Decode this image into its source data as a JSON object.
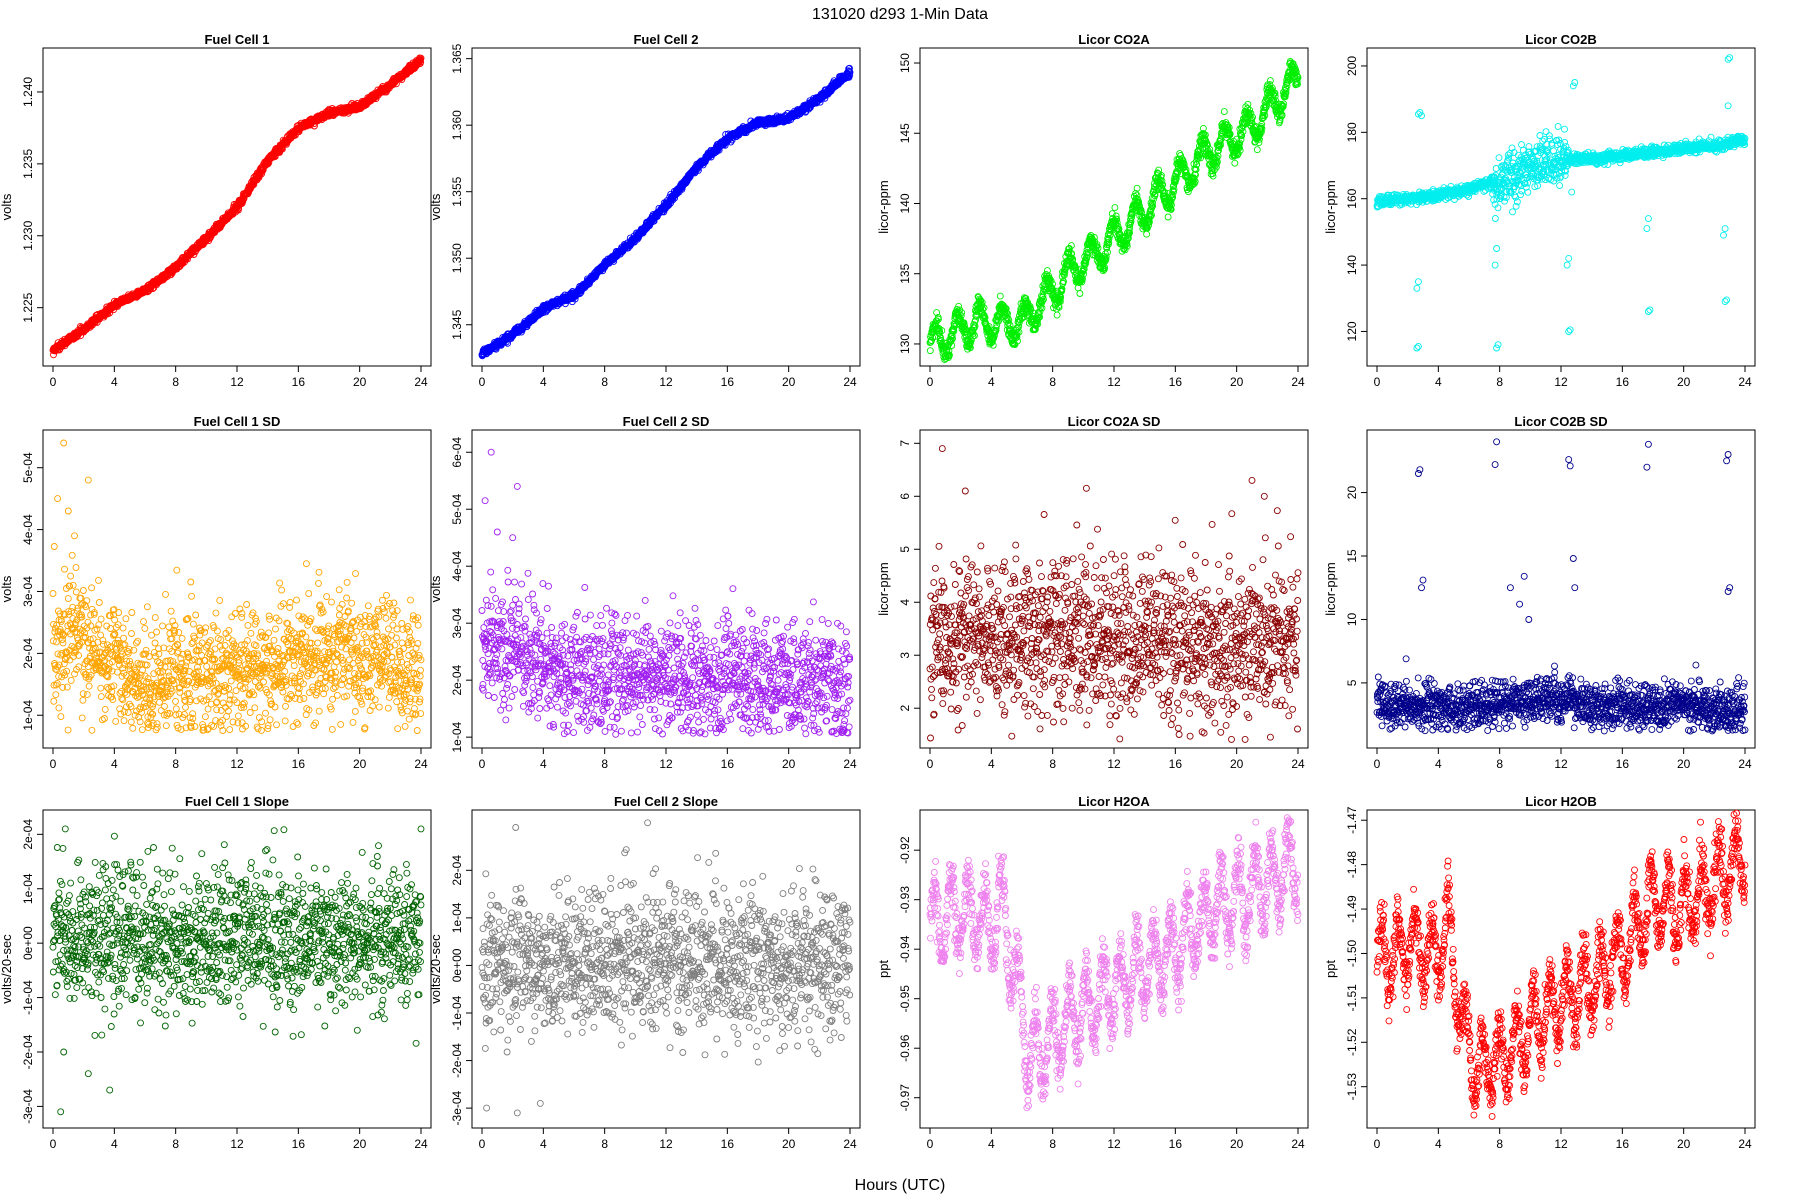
{
  "figure": {
    "title": "131020    d293    1-Min Data",
    "xlabel": "Hours (UTC)"
  },
  "chart_data": [
    {
      "type": "scatter",
      "title": "Fuel Cell 1",
      "ylabel": "volts",
      "xlim": [
        0,
        24
      ],
      "ylim": [
        1.2215,
        1.2425
      ],
      "xticks": [
        0,
        4,
        8,
        12,
        16,
        20,
        24
      ],
      "yticks": [
        1.225,
        1.23,
        1.235,
        1.24
      ],
      "ytick_labels": [
        "1.225",
        "1.230",
        "1.235",
        "1.240"
      ],
      "color": "#ff0000",
      "marker": "open-circle",
      "grid": false,
      "gen": {
        "kind": "curve",
        "n": 1440,
        "noise": 0.00012,
        "xy": [
          [
            0,
            1.222
          ],
          [
            2,
            1.2235
          ],
          [
            4,
            1.2252
          ],
          [
            6,
            1.2262
          ],
          [
            8,
            1.2278
          ],
          [
            10,
            1.2298
          ],
          [
            12,
            1.232
          ],
          [
            14,
            1.2352
          ],
          [
            16,
            1.2375
          ],
          [
            18,
            1.2385
          ],
          [
            20,
            1.239
          ],
          [
            22,
            1.2405
          ],
          [
            24,
            1.2422
          ]
        ]
      }
    },
    {
      "type": "scatter",
      "title": "Fuel Cell 2",
      "ylabel": "volts",
      "xlim": [
        0,
        24
      ],
      "ylim": [
        1.3425,
        1.3652
      ],
      "xticks": [
        0,
        4,
        8,
        12,
        16,
        20,
        24
      ],
      "yticks": [
        1.345,
        1.35,
        1.355,
        1.36,
        1.365
      ],
      "ytick_labels": [
        "1.345",
        "1.350",
        "1.355",
        "1.360",
        "1.365"
      ],
      "color": "#0000ff",
      "marker": "open-circle",
      "grid": false,
      "gen": {
        "kind": "curve",
        "n": 1440,
        "noise": 0.00013,
        "xy": [
          [
            0,
            1.3428
          ],
          [
            2,
            1.3442
          ],
          [
            4,
            1.3462
          ],
          [
            6,
            1.3472
          ],
          [
            8,
            1.3495
          ],
          [
            10,
            1.3515
          ],
          [
            12,
            1.354
          ],
          [
            14,
            1.3568
          ],
          [
            16,
            1.359
          ],
          [
            18,
            1.3602
          ],
          [
            20,
            1.3605
          ],
          [
            22,
            1.362
          ],
          [
            24,
            1.364
          ]
        ]
      }
    },
    {
      "type": "scatter",
      "title": "Licor CO2A",
      "ylabel": "licor-ppm",
      "xlim": [
        0,
        24
      ],
      "ylim": [
        129,
        150.5
      ],
      "xticks": [
        0,
        4,
        8,
        12,
        16,
        20,
        24
      ],
      "yticks": [
        130,
        135,
        140,
        145,
        150
      ],
      "ytick_labels": [
        "130",
        "135",
        "140",
        "145",
        "150"
      ],
      "color": "#00ee00",
      "marker": "open-circle",
      "grid": false,
      "gen": {
        "kind": "wave",
        "n": 1440,
        "noise": 0.35,
        "amp": 1.2,
        "period": 1.45,
        "xy": [
          [
            0,
            130
          ],
          [
            3,
            131.5
          ],
          [
            6,
            131.5
          ],
          [
            9,
            135
          ],
          [
            12,
            137.5
          ],
          [
            15,
            140.5
          ],
          [
            18,
            143.5
          ],
          [
            21,
            145.5
          ],
          [
            24,
            149
          ]
        ]
      }
    },
    {
      "type": "scatter",
      "title": "Licor CO2B",
      "ylabel": "licor-ppm",
      "xlim": [
        0,
        24
      ],
      "ylim": [
        112,
        203
      ],
      "xticks": [
        0,
        4,
        8,
        12,
        16,
        20,
        24
      ],
      "yticks": [
        120,
        140,
        160,
        180,
        200
      ],
      "ytick_labels": [
        "120",
        "140",
        "160",
        "180",
        "200"
      ],
      "color": "#00eeee",
      "marker": "open-circle",
      "grid": false,
      "gen": {
        "kind": "co2b",
        "n": 1440,
        "noise": 0.8,
        "xy": [
          [
            0,
            159
          ],
          [
            4,
            161
          ],
          [
            6,
            163
          ],
          [
            8,
            166
          ],
          [
            10,
            170
          ],
          [
            12,
            172
          ],
          [
            14,
            172
          ],
          [
            18,
            174
          ],
          [
            22,
            176
          ],
          [
            24,
            178
          ]
        ]
      },
      "outliers": [
        [
          2.7,
          185.5
        ],
        [
          2.8,
          186
        ],
        [
          2.9,
          185
        ],
        [
          2.6,
          133
        ],
        [
          2.7,
          135
        ],
        [
          2.6,
          115
        ],
        [
          2.7,
          115.5
        ],
        [
          7.8,
          115
        ],
        [
          7.9,
          116
        ],
        [
          7.7,
          140
        ],
        [
          7.8,
          145
        ],
        [
          12.5,
          120
        ],
        [
          12.6,
          120.5
        ],
        [
          12.4,
          140
        ],
        [
          12.5,
          142
        ],
        [
          12.8,
          194
        ],
        [
          12.9,
          195
        ],
        [
          12.7,
          162
        ],
        [
          17.7,
          126
        ],
        [
          17.8,
          126.5
        ],
        [
          17.6,
          151
        ],
        [
          17.7,
          154
        ],
        [
          22.7,
          129
        ],
        [
          22.8,
          129.5
        ],
        [
          22.6,
          149
        ],
        [
          22.7,
          151
        ],
        [
          22.9,
          202
        ],
        [
          23.0,
          202.5
        ],
        [
          22.9,
          188
        ]
      ]
    },
    {
      "type": "scatter",
      "title": "Fuel Cell 1 SD",
      "ylabel": "volts",
      "xlim": [
        0,
        24
      ],
      "ylim": [
        6e-05,
        0.000548
      ],
      "xticks": [
        0,
        4,
        8,
        12,
        16,
        20,
        24
      ],
      "yticks": [
        0.0001,
        0.0002,
        0.0003,
        0.0004,
        0.0005
      ],
      "ytick_labels": [
        "1e-04",
        "2e-04",
        "3e-04",
        "4e-04",
        "5e-04"
      ],
      "color": "#ffa500",
      "marker": "open-circle",
      "grid": false,
      "gen": {
        "kind": "band",
        "n": 1440,
        "min": 7.5e-05,
        "mean": 0.00018,
        "sd": 5e-05,
        "xy": [
          [
            0,
            0.00022
          ],
          [
            2,
            0.00022
          ],
          [
            5,
            0.00016
          ],
          [
            12,
            0.00017
          ],
          [
            19,
            0.0002
          ],
          [
            24,
            0.00017
          ]
        ]
      },
      "outliers": [
        [
          0.7,
          0.00054
        ],
        [
          0.3,
          0.00045
        ],
        [
          1.0,
          0.00043
        ],
        [
          2.3,
          0.00048
        ],
        [
          1.4,
          0.00039
        ]
      ]
    },
    {
      "type": "scatter",
      "title": "Fuel Cell 2 SD",
      "ylabel": "volts",
      "xlim": [
        0,
        24
      ],
      "ylim": [
        9.5e-05,
        0.000625
      ],
      "xticks": [
        0,
        4,
        8,
        12,
        16,
        20,
        24
      ],
      "yticks": [
        0.0001,
        0.0002,
        0.0003,
        0.0004,
        0.0005,
        0.0006
      ],
      "ytick_labels": [
        "1e-04",
        "2e-04",
        "3e-04",
        "4e-04",
        "5e-04",
        "6e-04"
      ],
      "color": "#a020f0",
      "marker": "open-circle",
      "grid": false,
      "gen": {
        "kind": "band",
        "n": 1440,
        "min": 0.000105,
        "mean": 0.000205,
        "sd": 5e-05,
        "xy": [
          [
            0,
            0.00026
          ],
          [
            3,
            0.00024
          ],
          [
            6,
            0.0002
          ],
          [
            12,
            0.00021
          ],
          [
            18,
            0.0002
          ],
          [
            24,
            0.00019
          ]
        ]
      },
      "outliers": [
        [
          0.6,
          0.0006
        ],
        [
          0.2,
          0.000515
        ],
        [
          2.3,
          0.00054
        ],
        [
          1.0,
          0.00046
        ],
        [
          2.0,
          0.00045
        ]
      ]
    },
    {
      "type": "scatter",
      "title": "Licor CO2A SD",
      "ylabel": "licor-ppm",
      "xlim": [
        0,
        24
      ],
      "ylim": [
        1.4,
        7.1
      ],
      "xticks": [
        0,
        4,
        8,
        12,
        16,
        20,
        24
      ],
      "yticks": [
        2,
        3,
        4,
        5,
        6,
        7
      ],
      "ytick_labels": [
        "2",
        "3",
        "4",
        "5",
        "6",
        "7"
      ],
      "color": "#8b0000",
      "marker": "open-circle",
      "grid": false,
      "gen": {
        "kind": "band",
        "n": 1440,
        "min": 1.4,
        "mean": 3.3,
        "sd": 0.75,
        "xy": [
          [
            0,
            3.3
          ],
          [
            24,
            3.2
          ]
        ]
      },
      "outliers": [
        [
          0.8,
          6.9
        ],
        [
          2.3,
          6.1
        ],
        [
          10.2,
          6.15
        ],
        [
          21.0,
          6.3
        ],
        [
          21.8,
          6.0
        ]
      ]
    },
    {
      "type": "scatter",
      "title": "Licor CO2B SD",
      "ylabel": "licor-ppm",
      "xlim": [
        0,
        24
      ],
      "ylim": [
        0.5,
        24.3
      ],
      "xticks": [
        0,
        4,
        8,
        12,
        16,
        20,
        24
      ],
      "yticks": [
        5,
        10,
        15,
        20
      ],
      "ytick_labels": [
        "5",
        "10",
        "15",
        "20"
      ],
      "color": "#00008b",
      "marker": "open-circle",
      "grid": false,
      "gen": {
        "kind": "band",
        "n": 1440,
        "min": 1.2,
        "mean": 3.2,
        "sd": 0.9,
        "xy": [
          [
            0,
            3.1
          ],
          [
            8,
            3.3
          ],
          [
            11,
            3.8
          ],
          [
            14,
            3.2
          ],
          [
            24,
            3.0
          ]
        ]
      },
      "outliers": [
        [
          2.7,
          21.5
        ],
        [
          2.8,
          21.8
        ],
        [
          2.9,
          12.5
        ],
        [
          3.0,
          13.1
        ],
        [
          7.8,
          24
        ],
        [
          7.7,
          22.2
        ],
        [
          8.7,
          12.5
        ],
        [
          9.3,
          11.2
        ],
        [
          9.6,
          13.4
        ],
        [
          9.9,
          10
        ],
        [
          12.5,
          22.6
        ],
        [
          12.6,
          22.1
        ],
        [
          12.8,
          14.8
        ],
        [
          12.9,
          12.5
        ],
        [
          17.7,
          23.8
        ],
        [
          17.6,
          22
        ],
        [
          22.8,
          22.5
        ],
        [
          22.9,
          23
        ],
        [
          22.9,
          12.2
        ],
        [
          23.0,
          12.5
        ],
        [
          1.9,
          6.9
        ],
        [
          20.8,
          6.4
        ]
      ]
    },
    {
      "type": "scatter",
      "title": "Fuel Cell 1 Slope",
      "ylabel": "volts/20-sec",
      "xlim": [
        0,
        24
      ],
      "ylim": [
        -0.000325,
        0.00023
      ],
      "xticks": [
        0,
        4,
        8,
        12,
        16,
        20,
        24
      ],
      "yticks": [
        -0.0003,
        -0.0002,
        -0.0001,
        0,
        0.0001,
        0.0002
      ],
      "ytick_labels": [
        "-3e-04",
        "-2e-04",
        "-1e-04",
        "0e+00",
        "1e-04",
        "2e-04"
      ],
      "color": "#006400",
      "marker": "open-circle",
      "grid": false,
      "gen": {
        "kind": "band",
        "n": 1440,
        "min": -0.00021,
        "max": 0.00021,
        "mean": 1e-05,
        "sd": 6.5e-05,
        "xy": [
          [
            0,
            1e-05
          ],
          [
            24,
            1e-05
          ]
        ]
      },
      "outliers": [
        [
          0.5,
          -0.00031
        ],
        [
          0.7,
          -0.0002
        ],
        [
          2.3,
          -0.00024
        ],
        [
          3.7,
          -0.00027
        ],
        [
          0.8,
          0.00021
        ],
        [
          24.0,
          0.00021
        ]
      ]
    },
    {
      "type": "scatter",
      "title": "Fuel Cell 2 Slope",
      "ylabel": "volts/20-sec",
      "xlim": [
        0,
        24
      ],
      "ylim": [
        -0.000325,
        0.00031
      ],
      "xticks": [
        0,
        4,
        8,
        12,
        16,
        20,
        24
      ],
      "yticks": [
        -0.0003,
        -0.0002,
        -0.0001,
        0,
        0.0001,
        0.0002
      ],
      "ytick_labels": [
        "-3e-04",
        "-2e-04",
        "-1e-04",
        "0e+00",
        "1e-04",
        "2e-04"
      ],
      "color": "#7f7f7f",
      "marker": "open-circle",
      "grid": false,
      "gen": {
        "kind": "band",
        "n": 1440,
        "min": -0.00023,
        "max": 0.00027,
        "mean": 1e-05,
        "sd": 7.5e-05,
        "xy": [
          [
            0,
            1e-05
          ],
          [
            24,
            1e-05
          ]
        ]
      },
      "outliers": [
        [
          0.3,
          -0.0003
        ],
        [
          2.3,
          -0.00031
        ],
        [
          3.8,
          -0.00029
        ],
        [
          2.2,
          0.00029
        ],
        [
          10.8,
          0.0003
        ]
      ]
    },
    {
      "type": "scatter",
      "title": "Licor H2OA",
      "ylabel": "ppt",
      "xlim": [
        0,
        24
      ],
      "ylim": [
        -0.9745,
        -0.9135
      ],
      "xticks": [
        0,
        4,
        8,
        12,
        16,
        20,
        24
      ],
      "yticks": [
        -0.97,
        -0.96,
        -0.95,
        -0.94,
        -0.93,
        -0.92
      ],
      "ytick_labels": [
        "-0.97",
        "-0.96",
        "-0.95",
        "-0.94",
        "-0.93",
        "-0.92"
      ],
      "color": "#ee82ee",
      "marker": "open-circle",
      "grid": false,
      "gen": {
        "kind": "wave",
        "n": 1440,
        "noise": 0.0025,
        "amp": 0.0075,
        "period": 1.1,
        "xy": [
          [
            0,
            -0.935
          ],
          [
            2,
            -0.932
          ],
          [
            4,
            -0.935
          ],
          [
            4.6,
            -0.93
          ],
          [
            5.5,
            -0.945
          ],
          [
            6.5,
            -0.962
          ],
          [
            8,
            -0.958
          ],
          [
            10,
            -0.952
          ],
          [
            12,
            -0.948
          ],
          [
            14,
            -0.944
          ],
          [
            16,
            -0.94
          ],
          [
            18,
            -0.932
          ],
          [
            20,
            -0.93
          ],
          [
            22,
            -0.927
          ],
          [
            24,
            -0.923
          ]
        ]
      }
    },
    {
      "type": "scatter",
      "title": "Licor H2OB",
      "ylabel": "ppt",
      "xlim": [
        0,
        24
      ],
      "ylim": [
        -1.5375,
        -1.4695
      ],
      "xticks": [
        0,
        4,
        8,
        12,
        16,
        20,
        24
      ],
      "yticks": [
        -1.53,
        -1.52,
        -1.51,
        -1.5,
        -1.49,
        -1.48,
        -1.47
      ],
      "ytick_labels": [
        "-1.53",
        "-1.52",
        "-1.51",
        "-1.50",
        "-1.49",
        "-1.48",
        "-1.47"
      ],
      "color": "#ff0000",
      "marker": "open-circle",
      "grid": false,
      "gen": {
        "kind": "wave",
        "n": 1440,
        "noise": 0.0028,
        "amp": 0.008,
        "period": 1.1,
        "xy": [
          [
            0,
            -1.502
          ],
          [
            2,
            -1.498
          ],
          [
            4,
            -1.5
          ],
          [
            4.6,
            -1.492
          ],
          [
            5.5,
            -1.515
          ],
          [
            6.5,
            -1.527
          ],
          [
            8,
            -1.524
          ],
          [
            10,
            -1.516
          ],
          [
            12,
            -1.511
          ],
          [
            14,
            -1.506
          ],
          [
            16,
            -1.5
          ],
          [
            18,
            -1.488
          ],
          [
            20,
            -1.49
          ],
          [
            22,
            -1.484
          ],
          [
            24,
            -1.478
          ]
        ]
      }
    }
  ]
}
